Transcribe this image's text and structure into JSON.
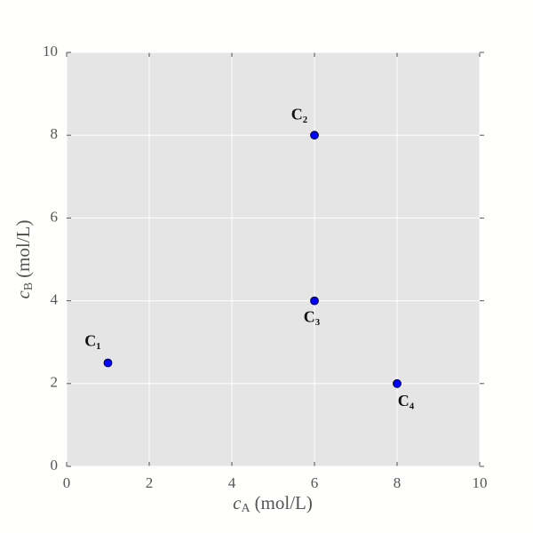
{
  "chart_data": {
    "type": "scatter",
    "xlabel": {
      "symbol": "c",
      "sub": "A",
      "unit": "(mol/L)"
    },
    "ylabel": {
      "symbol": "c",
      "sub": "B",
      "unit": "(mol/L)"
    },
    "x": [
      1,
      6,
      6,
      8
    ],
    "y": [
      2.5,
      8,
      4,
      2
    ],
    "labels": [
      "C₁",
      "C₂",
      "C₃",
      "C₄"
    ],
    "color": "#0000ff",
    "xlim": [
      0,
      10
    ],
    "ylim": [
      0,
      10
    ],
    "xticks": [
      0,
      2,
      4,
      6,
      8,
      10
    ],
    "yticks": [
      0,
      2,
      4,
      6,
      8,
      10
    ],
    "grid": true
  }
}
